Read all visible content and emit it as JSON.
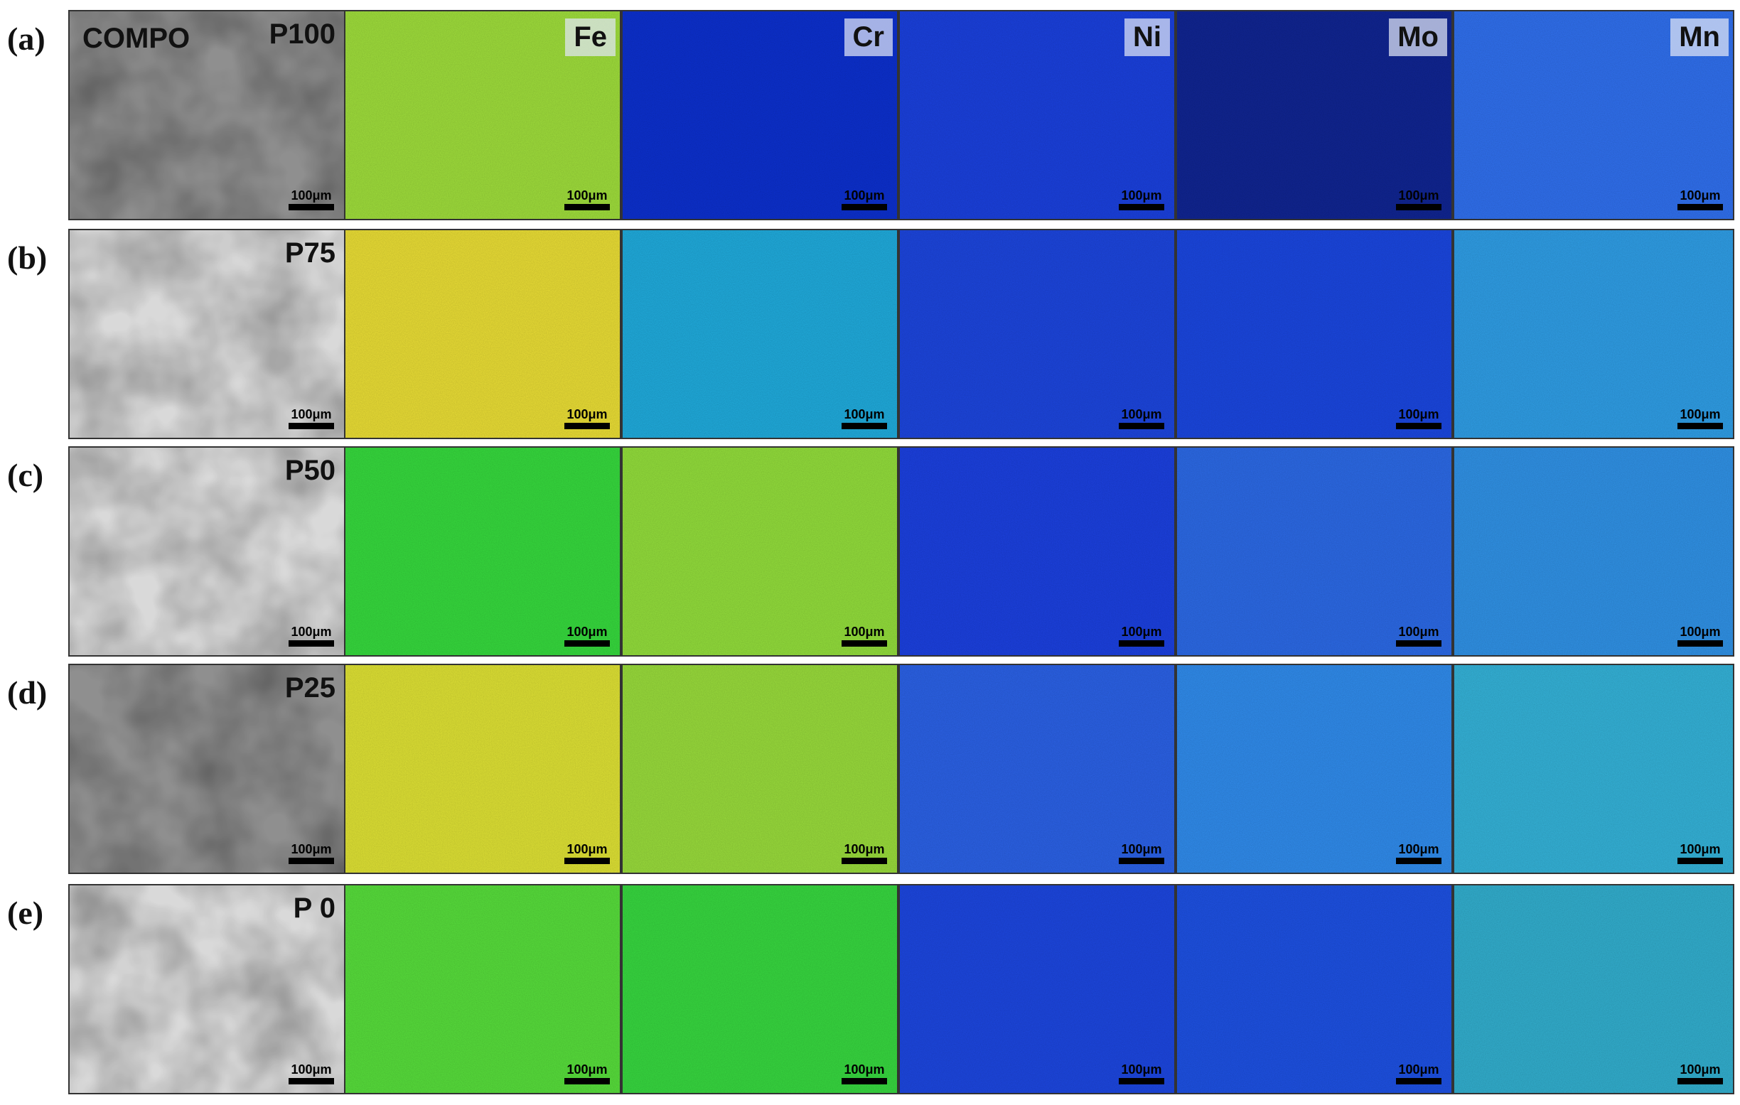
{
  "figure": {
    "rows": [
      {
        "label": "(a)",
        "sample": "P100",
        "compo_label": "COMPO"
      },
      {
        "label": "(b)",
        "sample": "P75"
      },
      {
        "label": "(c)",
        "sample": "P50"
      },
      {
        "label": "(d)",
        "sample": "P25"
      },
      {
        "label": "(e)",
        "sample": "P 0"
      }
    ],
    "element_columns": [
      "Fe",
      "Cr",
      "Ni",
      "Mo",
      "Mn"
    ],
    "scale_bar_text": "100μm",
    "palette": {
      "bse_dark": "#8f8f8f",
      "bse_light": "#d9d9d9",
      "map_colors": [
        [
          "#9bd83a",
          "#0c2fc9",
          "#1a3fd8",
          "#10248e",
          "#2f6de8"
        ],
        [
          "#e4d834",
          "#1fa7d7",
          "#1c44d8",
          "#1a45da",
          "#2e9ae0"
        ],
        [
          "#35d43c",
          "#8fd83a",
          "#1b3fda",
          "#2b67e0",
          "#2f8ee0"
        ],
        [
          "#d9dc33",
          "#95d63a",
          "#2a5fe0",
          "#2f88e6",
          "#33aed3"
        ],
        [
          "#55d83a",
          "#36d23e",
          "#1c45da",
          "#1d4fdd",
          "#31aac9"
        ]
      ]
    }
  }
}
